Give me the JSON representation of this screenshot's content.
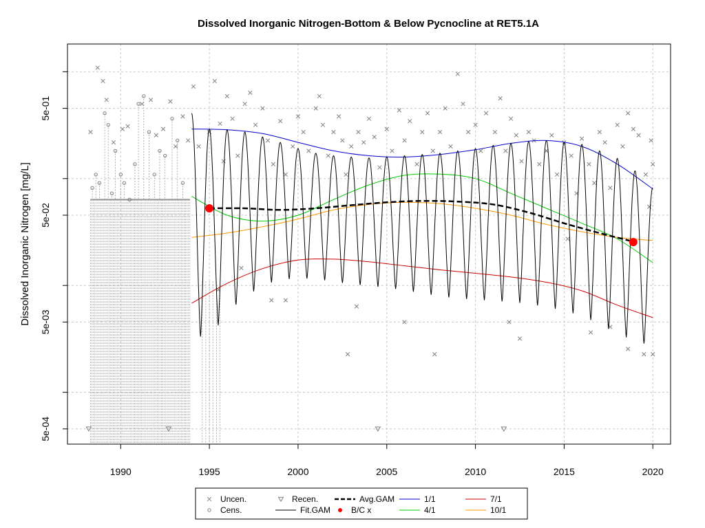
{
  "chart_data": {
    "type": "scatter",
    "title": "Dissolved Inorganic Nitrogen-Bottom & Below Pycnocline at RET5.1A",
    "ylabel": "Dissolved Inorganic Nitrogen [mg/L]",
    "xlabel": "",
    "y_scale": "log",
    "xlim": [
      1987.0,
      2021.0
    ],
    "ylim": [
      0.00036,
      2.0
    ],
    "grid": true,
    "x_ticks": [
      1990,
      1995,
      2000,
      2005,
      2010,
      2015,
      2020
    ],
    "x_tick_labels": [
      "1990",
      "1995",
      "2000",
      "2005",
      "2010",
      "2015",
      "2020"
    ],
    "y_ticks": [
      0.0005,
      0.005,
      0.05,
      0.5
    ],
    "y_tick_labels": [
      "5e-04",
      "5e-03",
      "5e-02",
      "5e-01"
    ],
    "y_minor_grid": [
      0.0011,
      0.011,
      0.11,
      1.1
    ],
    "legend": {
      "position": "bottom",
      "entries": [
        {
          "label": "Uncen.",
          "symbol": "cross",
          "color": "#808080"
        },
        {
          "label": "Cens.",
          "symbol": "circle",
          "color": "#808080"
        },
        {
          "label": "Recen.",
          "symbol": "triangle-down",
          "color": "#808080"
        },
        {
          "label": "Fit.GAM",
          "symbol": "line",
          "color": "#000000"
        },
        {
          "label": "Avg.GAM",
          "symbol": "dashed",
          "color": "#000000"
        },
        {
          "label": "B/C x",
          "symbol": "dot",
          "color": "#ff0000"
        },
        {
          "label": "1/1",
          "symbol": "line",
          "color": "#0000cc"
        },
        {
          "label": "4/1",
          "symbol": "line",
          "color": "#00cc00"
        },
        {
          "label": "7/1",
          "symbol": "line",
          "color": "#cc0000"
        },
        {
          "label": "10/1",
          "symbol": "line",
          "color": "#ff9900"
        }
      ]
    },
    "series": [
      {
        "name": "1/1",
        "color": "#0000cc",
        "x": [
          1994.0,
          1996.0,
          1998.0,
          2000.0,
          2002.0,
          2004.0,
          2006.0,
          2008.0,
          2010.0,
          2012.0,
          2014.0,
          2016.0,
          2018.0,
          2020.0
        ],
        "y": [
          0.32,
          0.315,
          0.29,
          0.24,
          0.2,
          0.18,
          0.175,
          0.185,
          0.205,
          0.235,
          0.25,
          0.22,
          0.15,
          0.088
        ]
      },
      {
        "name": "4/1",
        "color": "#00cc00",
        "x": [
          1994.0,
          1996.0,
          1998.0,
          2000.0,
          2002.0,
          2004.0,
          2006.0,
          2008.0,
          2010.0,
          2012.0,
          2014.0,
          2016.0,
          2018.0,
          2020.0
        ],
        "y": [
          0.075,
          0.05,
          0.044,
          0.05,
          0.07,
          0.096,
          0.118,
          0.121,
          0.11,
          0.08,
          0.058,
          0.042,
          0.03,
          0.018
        ]
      },
      {
        "name": "7/1",
        "color": "#cc0000",
        "x": [
          1994.0,
          1996.0,
          1998.0,
          2000.0,
          2002.0,
          2004.0,
          2006.0,
          2008.0,
          2010.0,
          2012.0,
          2014.0,
          2016.0,
          2018.0,
          2020.0
        ],
        "y": [
          0.0075,
          0.0115,
          0.0158,
          0.019,
          0.0194,
          0.0183,
          0.0168,
          0.0154,
          0.0143,
          0.0132,
          0.0118,
          0.0098,
          0.0072,
          0.0055
        ]
      },
      {
        "name": "10/1",
        "color": "#ff9900",
        "x": [
          1994.0,
          1996.0,
          1998.0,
          2000.0,
          2002.0,
          2004.0,
          2006.0,
          2008.0,
          2010.0,
          2012.0,
          2014.0,
          2016.0,
          2018.0,
          2020.0
        ],
        "y": [
          0.031,
          0.034,
          0.039,
          0.046,
          0.056,
          0.063,
          0.066,
          0.064,
          0.058,
          0.05,
          0.041,
          0.035,
          0.031,
          0.029
        ]
      },
      {
        "name": "Avg.GAM",
        "color": "#000000",
        "x": [
          1995.0,
          1997.0,
          1999.0,
          2001.0,
          2003.0,
          2005.0,
          2007.0,
          2009.0,
          2011.0,
          2013.0,
          2015.0,
          2017.0,
          2019.0
        ],
        "y": [
          0.058,
          0.058,
          0.056,
          0.058,
          0.062,
          0.066,
          0.068,
          0.067,
          0.063,
          0.053,
          0.042,
          0.034,
          0.028
        ]
      },
      {
        "name": "Fit.GAM",
        "color": "#000000",
        "x_start": 1994.0,
        "x_end": 2020.0,
        "peak": [
          0.45,
          0.32,
          0.315,
          0.3,
          0.27,
          0.24,
          0.21,
          0.19,
          0.18,
          0.175,
          0.172,
          0.175,
          0.18,
          0.185,
          0.19,
          0.2,
          0.21,
          0.225,
          0.235,
          0.245,
          0.25,
          0.24,
          0.23,
          0.2,
          0.17,
          0.13,
          0.09
        ],
        "trough": [
          0.0038,
          0.0035,
          0.0062,
          0.0085,
          0.011,
          0.0125,
          0.0128,
          0.0127,
          0.0119,
          0.0113,
          0.0109,
          0.0105,
          0.0099,
          0.0093,
          0.0087,
          0.0083,
          0.0081,
          0.0079,
          0.0077,
          0.0074,
          0.0069,
          0.0064,
          0.0057,
          0.0048,
          0.0039,
          0.0033,
          0.003
        ]
      },
      {
        "name": "B/C x",
        "color": "#ff0000",
        "x": [
          1995.0,
          2018.9
        ],
        "y": [
          0.058,
          0.028
        ]
      },
      {
        "name": "Recen.",
        "color": "#808080",
        "x": [
          1988.2,
          1992.7,
          2004.5,
          2011.6
        ],
        "y": [
          0.0005,
          0.0005,
          0.0005,
          0.0005
        ]
      }
    ],
    "uncensored": {
      "x": [
        1988.3,
        1988.7,
        1989.0,
        1989.2,
        1989.6,
        1990.1,
        1990.4,
        1991.2,
        1991.7,
        1992.0,
        1992.4,
        1992.8,
        1993.1,
        1993.5,
        1993.8,
        1994.1,
        1994.4,
        1995.0,
        1995.3,
        1995.6,
        1995.8,
        1996.0,
        1996.3,
        1996.6,
        1997.0,
        1997.3,
        1997.6,
        1998.0,
        1998.3,
        1998.6,
        1999.0,
        1999.3,
        1999.7,
        2000.0,
        2000.3,
        2000.6,
        2001.0,
        2001.2,
        2001.4,
        2001.7,
        2002.0,
        2002.3,
        2002.5,
        2002.7,
        2003.0,
        2003.4,
        2003.7,
        2004.0,
        2004.3,
        2004.6,
        2005.0,
        2005.3,
        2005.7,
        2006.0,
        2006.3,
        2006.7,
        2007.0,
        2007.3,
        2007.6,
        2008.0,
        2008.3,
        2008.6,
        2009.0,
        2009.3,
        2009.6,
        2010.0,
        2010.3,
        2010.6,
        2011.1,
        2011.4,
        2011.7,
        2012.0,
        2012.3,
        2012.6,
        2013.0,
        2013.3,
        2013.6,
        2014.0,
        2014.3,
        2014.6,
        2015.0,
        2015.4,
        2015.7,
        2016.0,
        2016.4,
        2016.7,
        2017.0,
        2017.3,
        2017.6,
        2018.0,
        2018.3,
        2018.6,
        2018.9,
        2019.2,
        2019.6,
        2019.8,
        2019.9,
        2020.0,
        1995.5,
        1998.5,
        1999.3,
        2002.8,
        2006.0,
        2012.5,
        2016.5,
        2018.6,
        2019.5,
        2020.0,
        1996.8,
        2003.3,
        2007.7,
        2011.9,
        2015.2,
        2017.6
      ],
      "y": [
        0.3,
        1.2,
        0.9,
        0.6,
        0.24,
        0.32,
        0.34,
        0.55,
        0.6,
        0.28,
        0.32,
        0.58,
        0.22,
        0.42,
        0.25,
        0.8,
        0.22,
        0.3,
        0.9,
        0.36,
        0.16,
        0.65,
        0.4,
        0.18,
        0.55,
        0.7,
        0.35,
        0.5,
        0.25,
        0.15,
        0.38,
        0.12,
        0.22,
        0.42,
        0.3,
        0.2,
        0.5,
        0.65,
        0.35,
        0.18,
        0.3,
        0.42,
        0.25,
        0.12,
        0.22,
        0.3,
        0.24,
        0.4,
        0.27,
        0.14,
        0.32,
        0.2,
        0.48,
        0.25,
        0.38,
        0.15,
        0.3,
        0.45,
        0.2,
        0.3,
        0.5,
        0.22,
        1.05,
        0.55,
        0.3,
        0.35,
        0.2,
        0.45,
        0.3,
        0.62,
        0.2,
        0.4,
        0.28,
        0.16,
        0.3,
        0.25,
        0.15,
        0.2,
        0.28,
        0.12,
        0.24,
        0.18,
        0.08,
        0.26,
        0.15,
        0.1,
        0.3,
        0.24,
        0.09,
        0.35,
        0.22,
        0.45,
        0.32,
        0.28,
        0.12,
        0.06,
        0.25,
        0.15,
        0.01,
        0.008,
        0.008,
        0.0025,
        0.005,
        0.0035,
        0.004,
        0.0028,
        0.0025,
        0.0025,
        0.016,
        0.007,
        0.0025,
        0.005,
        0.03,
        0.0045
      ]
    },
    "censored": {
      "x": [
        1988.4,
        1988.6,
        1988.8,
        1989.1,
        1989.3,
        1989.5,
        1989.7,
        1990.0,
        1990.2,
        1990.5,
        1990.8,
        1991.0,
        1991.3,
        1991.6,
        1991.9,
        1992.2,
        1992.5,
        1992.9,
        1993.2,
        1993.5
      ],
      "y": [
        0.09,
        0.12,
        0.1,
        0.45,
        0.35,
        0.08,
        0.2,
        0.12,
        0.1,
        0.07,
        0.15,
        0.55,
        0.65,
        0.3,
        0.12,
        0.2,
        0.18,
        0.4,
        0.25,
        0.1
      ]
    },
    "censored_floor": 0.07,
    "censored_range": [
      1988.3,
      1993.9
    ],
    "recensored_drop_range": [
      1994.6,
      1995.7
    ]
  }
}
